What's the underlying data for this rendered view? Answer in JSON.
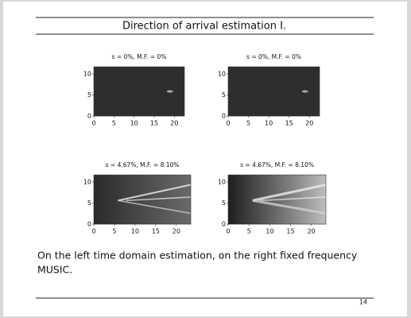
{
  "slide": {
    "title": "Direction of arrival estimation I.",
    "panels": [
      {
        "title": "s = 0%, M.F. = 0%",
        "xlim": [
          0,
          22.5
        ],
        "ylim": [
          0,
          11.7
        ],
        "xticks": [
          0,
          5,
          10,
          15,
          20
        ],
        "yticks": [
          0,
          5,
          10
        ]
      },
      {
        "title": "s = 0%, M.F. = 0%",
        "xlim": [
          0,
          22.5
        ],
        "ylim": [
          0,
          11.7
        ],
        "xticks": [
          0,
          5,
          10,
          15,
          20
        ],
        "yticks": [
          0,
          5,
          10
        ]
      },
      {
        "title": "s = 4.67%, M.F. = 8.10%",
        "xlim": [
          0,
          23.5
        ],
        "ylim": [
          0,
          11.7
        ],
        "xticks": [
          0,
          5,
          10,
          15,
          20
        ],
        "yticks": [
          0,
          5,
          10
        ]
      },
      {
        "title": "s = 4.67%, M.F. = 8.10%",
        "xlim": [
          0,
          23.5
        ],
        "ylim": [
          0,
          11.7
        ],
        "xticks": [
          0,
          5,
          10,
          15,
          20
        ],
        "yticks": [
          0,
          5,
          10
        ]
      }
    ],
    "caption": [
      "On the left time domain estimation, on the right fixed frequency",
      "MUSIC."
    ],
    "page_number": "14"
  }
}
